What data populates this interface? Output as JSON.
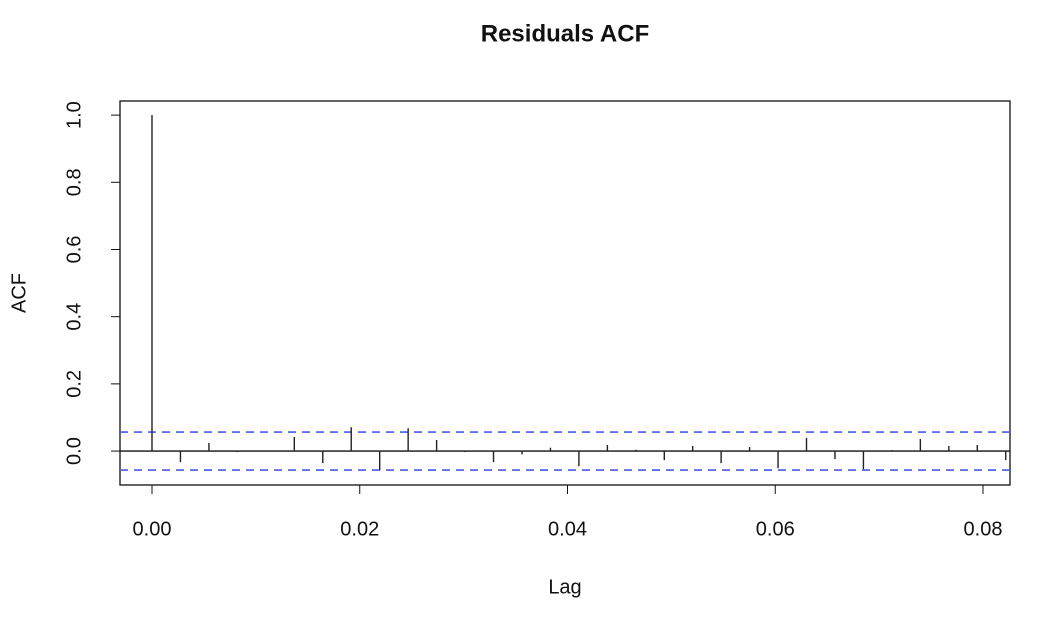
{
  "chart_data": {
    "type": "stem",
    "title": "Residuals ACF",
    "x_label": "Lag",
    "y_label": "ACF",
    "x": [
      0,
      0.00274,
      0.00548,
      0.00822,
      0.01096,
      0.0137,
      0.01644,
      0.01918,
      0.02192,
      0.02466,
      0.0274,
      0.03014,
      0.03288,
      0.03562,
      0.03836,
      0.0411,
      0.04384,
      0.04658,
      0.04932,
      0.05205,
      0.05479,
      0.05753,
      0.06027,
      0.06301,
      0.06575,
      0.06849,
      0.07123,
      0.07397,
      0.07671,
      0.07945,
      0.08219
    ],
    "values": [
      1.0,
      -0.033,
      0.024,
      -0.003,
      0.002,
      0.042,
      -0.036,
      0.071,
      -0.057,
      0.068,
      0.033,
      -0.003,
      -0.033,
      -0.01,
      0.01,
      -0.045,
      0.018,
      0.004,
      -0.027,
      0.015,
      -0.036,
      0.012,
      -0.051,
      0.039,
      -0.024,
      -0.054,
      0.003,
      0.036,
      0.015,
      0.018,
      -0.027
    ],
    "color": "#222222",
    "confidence_upper": 0.0565,
    "confidence_lower": -0.0565,
    "confidence_color": "#4a5ce8",
    "xlim": [
      -0.00308,
      0.0826
    ],
    "ylim": [
      -0.101,
      1.042
    ],
    "xticks": [
      {
        "value": 0,
        "label": "0.00"
      },
      {
        "value": 0.02,
        "label": "0.02"
      },
      {
        "value": 0.04,
        "label": "0.04"
      },
      {
        "value": 0.06,
        "label": "0.06"
      },
      {
        "value": 0.08,
        "label": "0.08"
      }
    ],
    "yticks": [
      {
        "value": 0,
        "label": "0.0"
      },
      {
        "value": 0.2,
        "label": "0.2"
      },
      {
        "value": 0.4,
        "label": "0.4"
      },
      {
        "value": 0.6,
        "label": "0.6"
      },
      {
        "value": 0.8,
        "label": "0.8"
      },
      {
        "value": 1,
        "label": "1.0"
      }
    ]
  }
}
